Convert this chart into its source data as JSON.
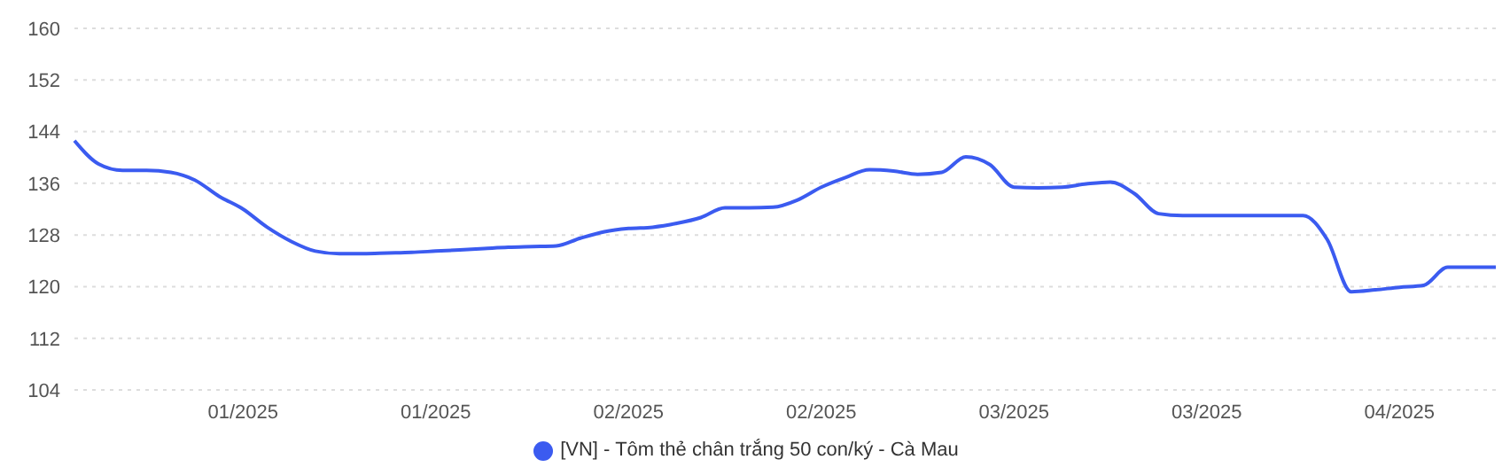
{
  "chart_data": {
    "type": "line",
    "categories": [
      null,
      null,
      null,
      null,
      null,
      null,
      null,
      "01/2025",
      null,
      null,
      null,
      null,
      null,
      null,
      null,
      "01/2025",
      null,
      null,
      null,
      null,
      null,
      null,
      null,
      "02/2025",
      null,
      null,
      null,
      null,
      null,
      null,
      null,
      "02/2025",
      null,
      null,
      null,
      null,
      null,
      null,
      null,
      "03/2025",
      null,
      null,
      null,
      null,
      null,
      null,
      null,
      "03/2025",
      null,
      null,
      null,
      null,
      null,
      null,
      null,
      "04/2025",
      null,
      null,
      null,
      null
    ],
    "series": [
      {
        "name": "[VN] - Tôm thẻ chân trắng 50 con/ký - Cà Mau",
        "color": "#3b5bf0",
        "values": [
          142.6,
          139,
          138,
          138,
          137.7,
          136.5,
          134,
          132,
          129.2,
          127,
          125.5,
          125.1,
          125.1,
          125.2,
          125.3,
          125.5,
          125.7,
          125.9,
          126.1,
          126.2,
          126.3,
          127.5,
          128.5,
          129,
          129.2,
          129.8,
          130.7,
          132.2,
          132.2,
          132.3,
          133.4,
          135.4,
          136.9,
          138.1,
          137.9,
          137.4,
          137.7,
          140.1,
          138.9,
          135.4,
          135.3,
          135.4,
          135.9,
          136.2,
          134.4,
          131.3,
          131,
          131,
          131,
          131,
          131,
          131,
          127.3,
          119.2,
          119.5,
          119.9,
          120.2,
          123,
          123,
          123
        ]
      }
    ],
    "ylim": [
      104,
      160
    ],
    "yticks": [
      104,
      112,
      120,
      128,
      136,
      144,
      152,
      160
    ],
    "grid": "y",
    "legend": "bottom",
    "marker": "none",
    "line_style": "solid"
  }
}
